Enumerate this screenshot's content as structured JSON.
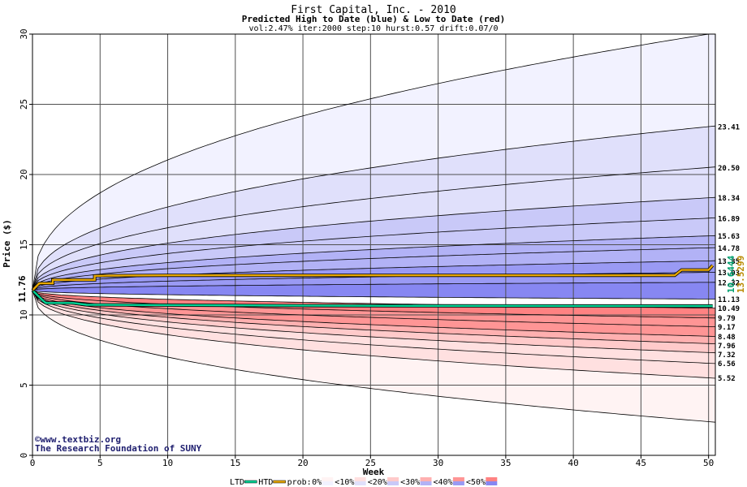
{
  "title": "First Capital, Inc. - 2010",
  "subtitle": "Predicted High to Date (blue) &  Low to Date (red)",
  "params": "vol:2.47% iter:2000 step:10 hurst:0.57 drift:0.07/0",
  "watermark": {
    "line1": "©www.textbiz.org",
    "line2": "The Research Foundation of SUNY"
  },
  "legend": {
    "ltd": "LTD",
    "htd": "HTD",
    "prob": "prob:",
    "items": [
      "0%",
      "<10%",
      "<20%",
      "<30%",
      "<40%",
      "<50%"
    ]
  },
  "colors": {
    "ltd": "#00d496",
    "htd": "#e8a800",
    "blue_bands": [
      "#f2f2ff",
      "#e0e0fb",
      "#c9c9f8",
      "#b2b2f6",
      "#9a9af4",
      "#8787f2"
    ],
    "red_bands": [
      "#fff3f3",
      "#ffe0e0",
      "#ffcaca",
      "#ffb0b0",
      "#ff9595",
      "#ff8282"
    ]
  },
  "chart_data": {
    "type": "area",
    "xlabel": "Week",
    "ylabel": "Price ($)",
    "xlim": [
      0,
      50.5
    ],
    "ylim": [
      0,
      30
    ],
    "xticks": [
      0,
      5,
      10,
      15,
      20,
      25,
      30,
      35,
      40,
      45,
      50
    ],
    "yticks": [
      0,
      5,
      10,
      15,
      20,
      25,
      30
    ],
    "grid": true,
    "start_price": 11.76,
    "start_label": "11.76",
    "high_quantiles": [
      {
        "end": 30.0,
        "label": ""
      },
      {
        "end": 23.41,
        "label": "23.41"
      },
      {
        "end": 20.5,
        "label": "20.50"
      },
      {
        "end": 18.34,
        "label": "18.34"
      },
      {
        "end": 16.89,
        "label": "16.89"
      },
      {
        "end": 15.63,
        "label": "15.63"
      },
      {
        "end": 14.78,
        "label": "14.78"
      },
      {
        "end": 13.85,
        "label": "13.85"
      },
      {
        "end": 13.03,
        "label": "13.03"
      },
      {
        "end": 12.32,
        "label": "12.32"
      },
      {
        "end": 11.13,
        "label": "11.13"
      }
    ],
    "low_quantiles": [
      {
        "end": 10.49,
        "label": "10.49"
      },
      {
        "end": 9.79,
        "label": "9.79"
      },
      {
        "end": 9.17,
        "label": "9.17"
      },
      {
        "end": 8.48,
        "label": "8.48"
      },
      {
        "end": 7.96,
        "label": "7.96"
      },
      {
        "end": 7.32,
        "label": "7.32"
      },
      {
        "end": 6.56,
        "label": "6.56"
      },
      {
        "end": 5.52,
        "label": "5.52"
      },
      {
        "end": 2.4,
        "label": ""
      }
    ],
    "htd_series": {
      "name": "HTD",
      "x": [
        0,
        0.5,
        1.5,
        1.5,
        4.6,
        4.6,
        5.5,
        10,
        20,
        30,
        40,
        47.5,
        48,
        50,
        50.3
      ],
      "y": [
        11.76,
        12.25,
        12.25,
        12.5,
        12.5,
        12.78,
        12.8,
        12.82,
        12.82,
        12.82,
        12.82,
        12.82,
        13.2,
        13.2,
        13.53
      ]
    },
    "ltd_series": {
      "name": "LTD",
      "x": [
        0,
        0.8,
        1,
        3,
        4,
        10,
        20,
        30,
        40,
        50.3
      ],
      "y": [
        11.76,
        11.0,
        10.85,
        10.85,
        10.72,
        10.7,
        10.66,
        10.65,
        10.64,
        10.64
      ]
    },
    "end_labels": {
      "htd": "13.5299",
      "ltd": "10.6444"
    }
  }
}
